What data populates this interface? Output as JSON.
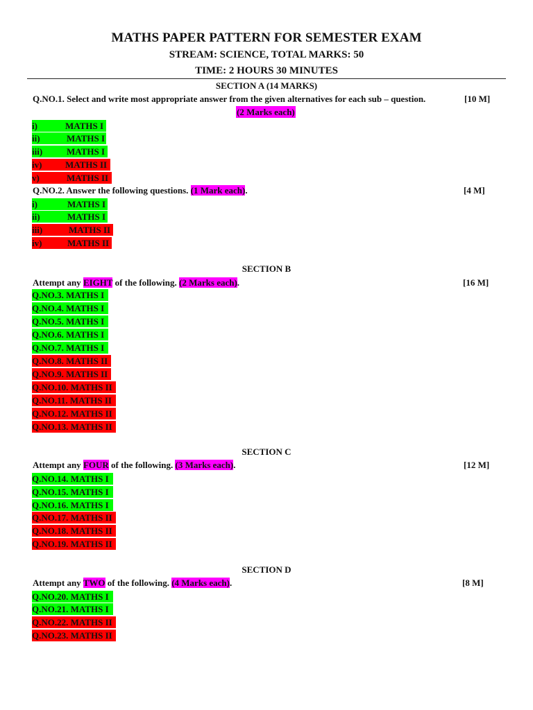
{
  "header": {
    "title": "MATHS PAPER PATTERN FOR SEMESTER EXAM",
    "stream": "STREAM: SCIENCE, TOTAL MARKS: 50",
    "time": "TIME: 2 HOURS 30 MINUTES"
  },
  "sectionA": {
    "heading": "SECTION A (14 MARKS)",
    "q1": {
      "text": "Q.NO.1. Select and write most appropriate answer from the given alternatives for each sub – question.",
      "marks": "[10 M]",
      "note": "(2 Marks each)",
      "items": [
        {
          "num": "i)",
          "label": "MATHS I",
          "color": "#00ff00"
        },
        {
          "num": "ii)",
          "label": "MATHS I",
          "color": "#00ff00"
        },
        {
          "num": "iii)",
          "label": "MATHS I",
          "color": "#00ff00"
        },
        {
          "num": "iv)",
          "label": "MATHS II",
          "color": "#ff0000"
        },
        {
          "num": "v)",
          "label": "MATHS II",
          "color": "#ff0000"
        }
      ]
    },
    "q2": {
      "text": "Q.NO.2. Answer the following questions. ",
      "note": "(1 Mark each)",
      "tail": ".",
      "marks": "[4 M]",
      "items": [
        {
          "num": "i)",
          "label": "MATHS I",
          "color": "#00ff00"
        },
        {
          "num": "ii)",
          "label": "MATHS I",
          "color": "#00ff00"
        },
        {
          "num": "iii)",
          "label": "MATHS II",
          "color": "#ff0000"
        },
        {
          "num": "iv)",
          "label": "MATHS II",
          "color": "#ff0000"
        }
      ]
    }
  },
  "sectionB": {
    "heading": "SECTION B",
    "pre": "Attempt any ",
    "count": "EIGHT",
    "mid": " of the following. ",
    "note": "(2 Marks each)",
    "tail": ".",
    "marks": "[16 M]",
    "items": [
      {
        "label": "Q.NO.3. MATHS I",
        "color": "#00ff00"
      },
      {
        "label": "Q.NO.4. MATHS I",
        "color": "#00ff00"
      },
      {
        "label": "Q.NO.5. MATHS I",
        "color": "#00ff00"
      },
      {
        "label": "Q.NO.6. MATHS I",
        "color": "#00ff00"
      },
      {
        "label": "Q.NO.7. MATHS I",
        "color": "#00ff00"
      },
      {
        "label": "Q.NO.8. MATHS II",
        "color": "#ff0000"
      },
      {
        "label": "Q.NO.9. MATHS II",
        "color": "#ff0000"
      },
      {
        "label": "Q.NO.10. MATHS II",
        "color": "#ff0000"
      },
      {
        "label": "Q.NO.11. MATHS II",
        "color": "#ff0000"
      },
      {
        "label": "Q.NO.12. MATHS II",
        "color": "#ff0000"
      },
      {
        "label": "Q.NO.13. MATHS II",
        "color": "#ff0000"
      }
    ]
  },
  "sectionC": {
    "heading": "SECTION C",
    "pre": "Attempt any ",
    "count": "FOUR",
    "mid": " of the following. ",
    "note": "(3 Marks each)",
    "tail": ".",
    "marks": "[12 M]",
    "items": [
      {
        "label": "Q.NO.14. MATHS I",
        "color": "#00ff00"
      },
      {
        "label": "Q.NO.15. MATHS I",
        "color": "#00ff00"
      },
      {
        "label": "Q.NO.16. MATHS I",
        "color": "#00ff00"
      },
      {
        "label": "Q.NO.17. MATHS II",
        "color": "#ff0000"
      },
      {
        "label": "Q.NO.18. MATHS II",
        "color": "#ff0000"
      },
      {
        "label": "Q.NO.19. MATHS II",
        "color": "#ff0000"
      }
    ]
  },
  "sectionD": {
    "heading": "SECTION D",
    "pre": "Attempt any ",
    "count": "TWO",
    "mid": " of the following. ",
    "note": "(4 Marks each)",
    "tail": ".",
    "marks": "[8 M]",
    "items": [
      {
        "label": "Q.NO.20. MATHS I",
        "color": "#00ff00"
      },
      {
        "label": "Q.NO.21. MATHS I",
        "color": "#00ff00"
      },
      {
        "label": "Q.NO.22. MATHS II",
        "color": "#ff0000"
      },
      {
        "label": "Q.NO.23. MATHS II",
        "color": "#ff0000"
      }
    ]
  }
}
